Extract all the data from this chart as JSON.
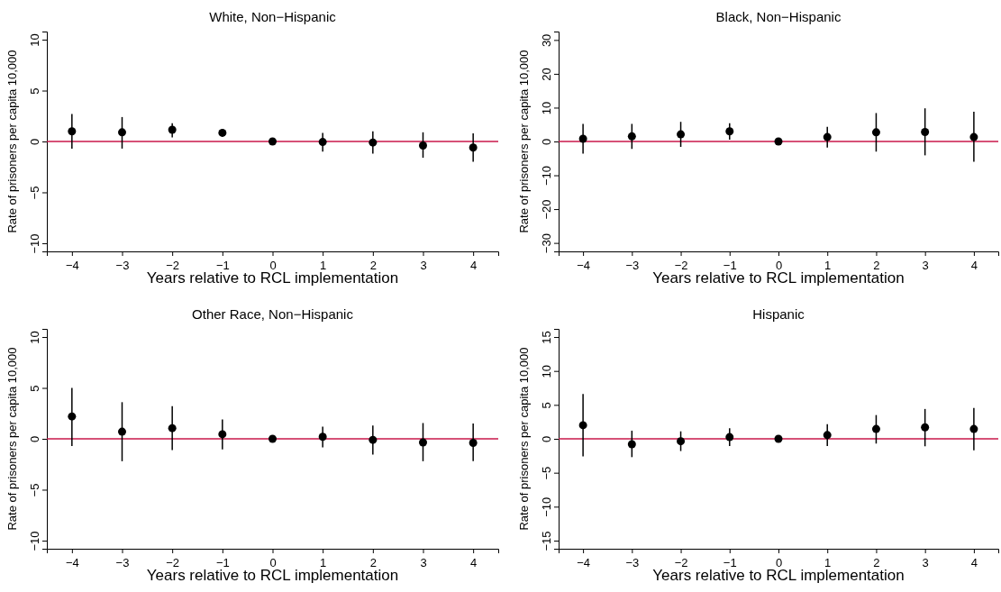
{
  "chart_data": [
    {
      "type": "scatter",
      "title": "White, Non−Hispanic",
      "xlabel": "Years relative to RCL implementation",
      "ylabel": "Rate of prisoners per capita 10,000",
      "marker": "circle",
      "xlim": [
        -4.5,
        4.5
      ],
      "ylim": [
        -10.8,
        10.8
      ],
      "xticks": [
        {
          "value": -4,
          "label": "−4"
        },
        {
          "value": -3,
          "label": "−3"
        },
        {
          "value": -2,
          "label": "−2"
        },
        {
          "value": -1,
          "label": "−1"
        },
        0,
        1,
        2,
        3,
        4
      ],
      "yticks": [
        {
          "value": -10,
          "label": "−10"
        },
        {
          "value": -5,
          "label": "−5"
        },
        0,
        5,
        10
      ],
      "ref_lines": [
        {
          "axis": "y",
          "value": 0,
          "color": "#c8174a"
        }
      ],
      "series": [
        {
          "color": "#000000",
          "x": [
            -4,
            -3,
            -2,
            -1,
            0,
            1,
            2,
            3,
            4
          ],
          "values": [
            1.0,
            0.9,
            1.15,
            0.85,
            0,
            -0.05,
            -0.1,
            -0.4,
            -0.6
          ],
          "errors": [
            [
              -0.7,
              2.7
            ],
            [
              -0.7,
              2.4
            ],
            [
              0.4,
              1.8
            ],
            [
              0.5,
              1.2
            ],
            null,
            [
              -1.0,
              0.85
            ],
            [
              -1.2,
              1.0
            ],
            [
              -1.6,
              0.9
            ],
            [
              -2.0,
              0.8
            ]
          ]
        }
      ]
    },
    {
      "type": "scatter",
      "title": "Black, Non−Hispanic",
      "xlabel": "Years relative to RCL implementation",
      "ylabel": "Rate of prisoners per capita 10,000",
      "marker": "circle",
      "xlim": [
        -4.5,
        4.5
      ],
      "ylim": [
        -32.5,
        32.5
      ],
      "xticks": [
        {
          "value": -4,
          "label": "−4"
        },
        {
          "value": -3,
          "label": "−3"
        },
        {
          "value": -2,
          "label": "−2"
        },
        {
          "value": -1,
          "label": "−1"
        },
        0,
        1,
        2,
        3,
        4
      ],
      "yticks": [
        {
          "value": -30,
          "label": "−30"
        },
        {
          "value": -20,
          "label": "−20"
        },
        {
          "value": -10,
          "label": "−10"
        },
        0,
        10,
        20,
        30
      ],
      "ref_lines": [
        {
          "axis": "y",
          "value": 0,
          "color": "#c8174a"
        }
      ],
      "series": [
        {
          "color": "#000000",
          "x": [
            -4,
            -3,
            -2,
            -1,
            0,
            1,
            2,
            3,
            4
          ],
          "values": [
            0.8,
            1.5,
            2.1,
            3.0,
            0,
            1.3,
            2.7,
            2.8,
            1.3
          ],
          "errors": [
            [
              -3.6,
              5.2
            ],
            [
              -2.2,
              5.2
            ],
            [
              -1.6,
              5.8
            ],
            [
              0.5,
              5.4
            ],
            null,
            [
              -1.8,
              4.3
            ],
            [
              -3.0,
              8.4
            ],
            [
              -4.1,
              9.8
            ],
            [
              -6.0,
              8.8
            ]
          ]
        }
      ]
    },
    {
      "type": "scatter",
      "title": "Other Race, Non−Hispanic",
      "xlabel": "Years relative to RCL implementation",
      "ylabel": "Rate of prisoners per capita 10,000",
      "marker": "circle",
      "xlim": [
        -4.5,
        4.5
      ],
      "ylim": [
        -10.8,
        10.8
      ],
      "xticks": [
        {
          "value": -4,
          "label": "−4"
        },
        {
          "value": -3,
          "label": "−3"
        },
        {
          "value": -2,
          "label": "−2"
        },
        {
          "value": -1,
          "label": "−1"
        },
        0,
        1,
        2,
        3,
        4
      ],
      "yticks": [
        {
          "value": -10,
          "label": "−10"
        },
        {
          "value": -5,
          "label": "−5"
        },
        0,
        5,
        10
      ],
      "ref_lines": [
        {
          "axis": "y",
          "value": 0,
          "color": "#c8174a"
        }
      ],
      "series": [
        {
          "color": "#000000",
          "x": [
            -4,
            -3,
            -2,
            -1,
            0,
            1,
            2,
            3,
            4
          ],
          "values": [
            2.2,
            0.7,
            1.05,
            0.45,
            0,
            0.2,
            -0.1,
            -0.35,
            -0.4
          ],
          "errors": [
            [
              -0.7,
              5.0
            ],
            [
              -2.2,
              3.6
            ],
            [
              -1.1,
              3.2
            ],
            [
              -1.05,
              1.9
            ],
            null,
            [
              -0.85,
              1.2
            ],
            [
              -1.55,
              1.3
            ],
            [
              -2.2,
              1.55
            ],
            [
              -2.2,
              1.5
            ]
          ]
        }
      ]
    },
    {
      "type": "scatter",
      "title": "Hispanic",
      "xlabel": "Years relative to RCL implementation",
      "ylabel": "Rate of prisoners per capita 10,000",
      "marker": "circle",
      "xlim": [
        -4.5,
        4.5
      ],
      "ylim": [
        -16.2,
        16.2
      ],
      "xticks": [
        {
          "value": -4,
          "label": "−4"
        },
        {
          "value": -3,
          "label": "−3"
        },
        {
          "value": -2,
          "label": "−2"
        },
        {
          "value": -1,
          "label": "−1"
        },
        0,
        1,
        2,
        3,
        4
      ],
      "yticks": [
        {
          "value": -15,
          "label": "−15"
        },
        {
          "value": -10,
          "label": "−10"
        },
        {
          "value": -5,
          "label": "−5"
        },
        0,
        5,
        10,
        15
      ],
      "ref_lines": [
        {
          "axis": "y",
          "value": 0,
          "color": "#c8174a"
        }
      ],
      "series": [
        {
          "color": "#000000",
          "x": [
            -4,
            -3,
            -2,
            -1,
            0,
            1,
            2,
            3,
            4
          ],
          "values": [
            2.0,
            -0.8,
            -0.35,
            0.25,
            0,
            0.55,
            1.45,
            1.7,
            1.45
          ],
          "errors": [
            [
              -2.6,
              6.6
            ],
            [
              -2.7,
              1.2
            ],
            [
              -1.8,
              1.1
            ],
            [
              -1.05,
              1.55
            ],
            null,
            [
              -1.05,
              2.15
            ],
            [
              -0.7,
              3.5
            ],
            [
              -1.1,
              4.4
            ],
            [
              -1.7,
              4.55
            ]
          ]
        }
      ]
    }
  ]
}
